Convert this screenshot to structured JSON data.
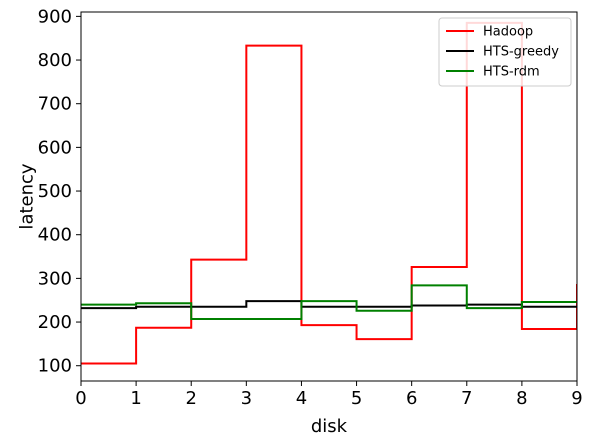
{
  "chart_data": {
    "type": "line",
    "step": "post",
    "xlabel": "disk",
    "ylabel": "latency",
    "xlim": [
      0,
      9
    ],
    "ylim": [
      65,
      910
    ],
    "xticks": [
      "0",
      "1",
      "2",
      "3",
      "4",
      "5",
      "6",
      "7",
      "8",
      "9"
    ],
    "yticks": [
      "100",
      "200",
      "300",
      "400",
      "500",
      "600",
      "700",
      "800",
      "900"
    ],
    "legend_position": "top-right",
    "x": [
      0,
      1,
      2,
      3,
      4,
      5,
      6,
      7,
      8
    ],
    "series": [
      {
        "name": "Hadoop",
        "color": "#ff0000",
        "values": [
          105,
          187,
          343,
          833,
          193,
          161,
          326,
          885,
          184
        ],
        "end_value": 287
      },
      {
        "name": "HTS-greedy",
        "color": "#000000",
        "values": [
          232,
          235,
          235,
          248,
          235,
          235,
          238,
          240,
          235
        ]
      },
      {
        "name": "HTS-rdm",
        "color": "#008000",
        "values": [
          240,
          243,
          207,
          207,
          248,
          226,
          284,
          232,
          246
        ]
      }
    ]
  }
}
